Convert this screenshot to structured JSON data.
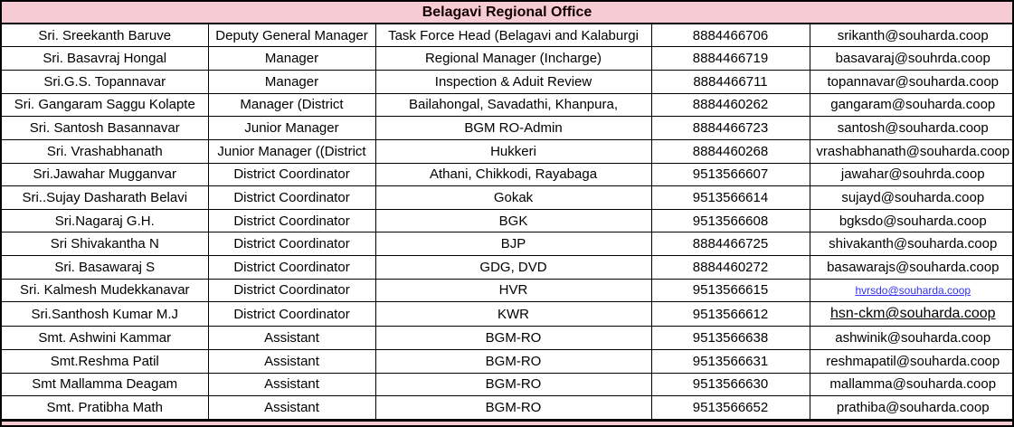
{
  "title": "Belagavi Regional Office",
  "colors": {
    "header_bg": "#F7CBD3",
    "grid": "#000000",
    "link_blue": "#3333F0",
    "text": "#000000"
  },
  "rows": [
    {
      "name": "Sri. Sreekanth Baruve",
      "designation": "Deputy General Manager",
      "assignment": "Task Force Head (Belagavi and Kalaburgi",
      "phone": "8884466706",
      "email": "srikanth@souharda.coop",
      "email_style": "plain"
    },
    {
      "name": "Sri. Basavraj Hongal",
      "designation": "Manager",
      "assignment": "Regional Manager (Incharge)",
      "phone": "8884466719",
      "email": "basavaraj@souhrda.coop",
      "email_style": "plain"
    },
    {
      "name": "Sri.G.S. Topannavar",
      "designation": "Manager",
      "assignment": "Inspection & Aduit Review",
      "phone": "8884466711",
      "email": "topannavar@souharda.coop",
      "email_style": "plain"
    },
    {
      "name": "Sri. Gangaram Saggu Kolapte",
      "designation": "Manager (District",
      "assignment": "Bailahongal, Savadathi, Khanpura,",
      "phone": "8884460262",
      "email": "gangaram@souharda.coop",
      "email_style": "plain"
    },
    {
      "name": "Sri. Santosh Basannavar",
      "designation": "Junior Manager",
      "assignment": "BGM RO-Admin",
      "phone": "8884466723",
      "email": "santosh@souharda.coop",
      "email_style": "plain"
    },
    {
      "name": "Sri. Vrashabhanath",
      "designation": "Junior Manager ((District",
      "assignment": "Hukkeri",
      "phone": "8884460268",
      "email": "vrashabhanath@souharda.coop",
      "email_style": "plain"
    },
    {
      "name": "Sri.Jawahar Mugganvar",
      "designation": "District Coordinator",
      "assignment": "Athani, Chikkodi, Rayabaga",
      "phone": "9513566607",
      "email": "jawahar@souhrda.coop",
      "email_style": "plain"
    },
    {
      "name": "Sri..Sujay Dasharath Belavi",
      "designation": "District Coordinator",
      "assignment": "Gokak",
      "phone": "9513566614",
      "email": "sujayd@souharda.coop",
      "email_style": "plain"
    },
    {
      "name": "Sri.Nagaraj G.H.",
      "designation": "District Coordinator",
      "assignment": "BGK",
      "phone": "9513566608",
      "email": "bgksdo@souharda.coop",
      "email_style": "plain"
    },
    {
      "name": "Sri Shivakantha N",
      "designation": "District Coordinator",
      "assignment": "BJP",
      "phone": "8884466725",
      "email": "shivakanth@souharda.coop",
      "email_style": "plain"
    },
    {
      "name": "Sri. Basawaraj S",
      "designation": "District Coordinator",
      "assignment": "GDG, DVD",
      "phone": "8884460272",
      "email": "basawarajs@souharda.coop",
      "email_style": "plain"
    },
    {
      "name": "Sri. Kalmesh Mudekkanavar",
      "designation": "District Coordinator",
      "assignment": "HVR",
      "phone": "9513566615",
      "email": "hvrsdo@souharda.coop",
      "email_style": "link"
    },
    {
      "name": "Sri.Santhosh Kumar M.J",
      "designation": "District Coordinator",
      "assignment": "KWR",
      "phone": "9513566612",
      "email": "hsn-ckm@souharda.coop",
      "email_style": "underline"
    },
    {
      "name": "Smt. Ashwini Kammar",
      "designation": "Assistant",
      "assignment": "BGM-RO",
      "phone": "9513566638",
      "email": "ashwinik@souharda.coop",
      "email_style": "plain"
    },
    {
      "name": "Smt.Reshma Patil",
      "designation": "Assistant",
      "assignment": "BGM-RO",
      "phone": "9513566631",
      "email": "reshmapatil@souharda.coop",
      "email_style": "plain"
    },
    {
      "name": "Smt Mallamma Deagam",
      "designation": "Assistant",
      "assignment": "BGM-RO",
      "phone": "9513566630",
      "email": "mallamma@souharda.coop",
      "email_style": "plain"
    },
    {
      "name": "Smt. Pratibha Math",
      "designation": "Assistant",
      "assignment": "BGM-RO",
      "phone": "9513566652",
      "email": "prathiba@souharda.coop",
      "email_style": "plain"
    }
  ]
}
